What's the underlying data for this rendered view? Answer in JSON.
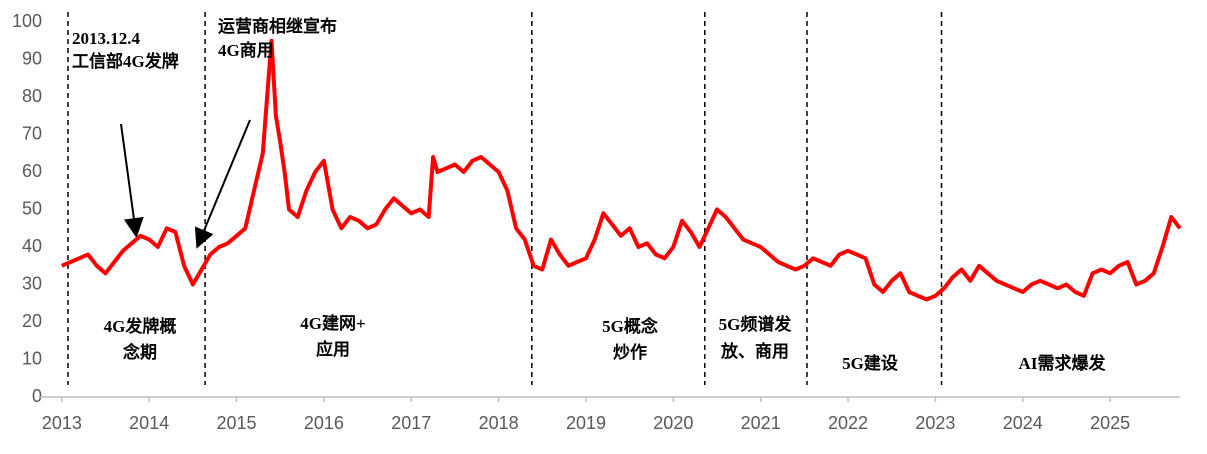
{
  "chart_data": {
    "type": "line",
    "series": [
      {
        "color": "#ff0000",
        "x": [
          2013.0,
          2013.1,
          2013.2,
          2013.3,
          2013.4,
          2013.5,
          2013.6,
          2013.7,
          2013.8,
          2013.9,
          2014.0,
          2014.1,
          2014.2,
          2014.3,
          2014.4,
          2014.5,
          2014.6,
          2014.7,
          2014.8,
          2014.9,
          2015.0,
          2015.1,
          2015.2,
          2015.3,
          2015.35,
          2015.4,
          2015.45,
          2015.5,
          2015.55,
          2015.6,
          2015.7,
          2015.8,
          2015.9,
          2016.0,
          2016.1,
          2016.2,
          2016.3,
          2016.4,
          2016.5,
          2016.6,
          2016.7,
          2016.8,
          2016.9,
          2017.0,
          2017.1,
          2017.2,
          2017.25,
          2017.3,
          2017.4,
          2017.5,
          2017.6,
          2017.7,
          2017.8,
          2017.9,
          2018.0,
          2018.1,
          2018.2,
          2018.3,
          2018.4,
          2018.5,
          2018.6,
          2018.7,
          2018.8,
          2018.9,
          2019.0,
          2019.1,
          2019.2,
          2019.3,
          2019.4,
          2019.5,
          2019.6,
          2019.7,
          2019.8,
          2019.9,
          2020.0,
          2020.1,
          2020.2,
          2020.3,
          2020.4,
          2020.5,
          2020.6,
          2020.7,
          2020.8,
          2020.9,
          2021.0,
          2021.1,
          2021.2,
          2021.3,
          2021.4,
          2021.5,
          2021.6,
          2021.7,
          2021.8,
          2021.9,
          2022.0,
          2022.1,
          2022.2,
          2022.3,
          2022.4,
          2022.5,
          2022.6,
          2022.7,
          2022.8,
          2022.9,
          2023.0,
          2023.1,
          2023.2,
          2023.3,
          2023.4,
          2023.5,
          2023.6,
          2023.7,
          2023.8,
          2023.9,
          2024.0,
          2024.1,
          2024.2,
          2024.3,
          2024.4,
          2024.5,
          2024.6,
          2024.7,
          2024.8,
          2024.9,
          2025.0,
          2025.1,
          2025.2,
          2025.3,
          2025.4,
          2025.5,
          2025.6,
          2025.7,
          2025.8
        ],
        "values": [
          35,
          36,
          37,
          38,
          35,
          33,
          36,
          39,
          41,
          43,
          42,
          40,
          45,
          44,
          35,
          30,
          34,
          38,
          40,
          41,
          43,
          45,
          55,
          65,
          80,
          95,
          75,
          68,
          60,
          50,
          48,
          55,
          60,
          63,
          50,
          45,
          48,
          47,
          45,
          46,
          50,
          53,
          51,
          49,
          50,
          48,
          64,
          60,
          61,
          62,
          60,
          63,
          64,
          62,
          60,
          55,
          45,
          42,
          35,
          34,
          42,
          38,
          35,
          36,
          37,
          42,
          49,
          46,
          43,
          45,
          40,
          41,
          38,
          37,
          40,
          47,
          44,
          40,
          45,
          50,
          48,
          45,
          42,
          41,
          40,
          38,
          36,
          35,
          34,
          35,
          37,
          36,
          35,
          38,
          39,
          38,
          37,
          30,
          28,
          31,
          33,
          28,
          27,
          26,
          27,
          29,
          32,
          34,
          31,
          35,
          33,
          31,
          30,
          29,
          28,
          30,
          31,
          30,
          29,
          30,
          28,
          27,
          33,
          34,
          33,
          35,
          36,
          30,
          31,
          33,
          40,
          48,
          45
        ]
      }
    ],
    "xlim": [
      2012.75,
      2025.8
    ],
    "xticks": [
      2013,
      2014,
      2015,
      2016,
      2017,
      2018,
      2019,
      2020,
      2021,
      2022,
      2023,
      2024,
      2025
    ],
    "ylim": [
      0,
      100
    ],
    "yticks": [
      0,
      10,
      20,
      30,
      40,
      50,
      60,
      70,
      80,
      90,
      100
    ],
    "grid": false,
    "vlines": [
      2013.07,
      2014.64,
      2018.38,
      2020.36,
      2021.53,
      2023.07
    ],
    "annotations": [
      {
        "lines": [
          "2013.12.4",
          "工信部4G发牌"
        ]
      },
      {
        "lines": [
          "运营商相继宣布",
          "4G商用"
        ]
      },
      {
        "lines": [
          "4G发牌概",
          "念期"
        ]
      },
      {
        "lines": [
          "4G建网+",
          "应用"
        ]
      },
      {
        "lines": [
          "5G概念",
          "炒作"
        ]
      },
      {
        "lines": [
          "5G频谱发",
          "放、商用"
        ]
      },
      {
        "lines": [
          "5G建设"
        ]
      },
      {
        "lines": [
          "AI需求爆发"
        ]
      }
    ]
  }
}
